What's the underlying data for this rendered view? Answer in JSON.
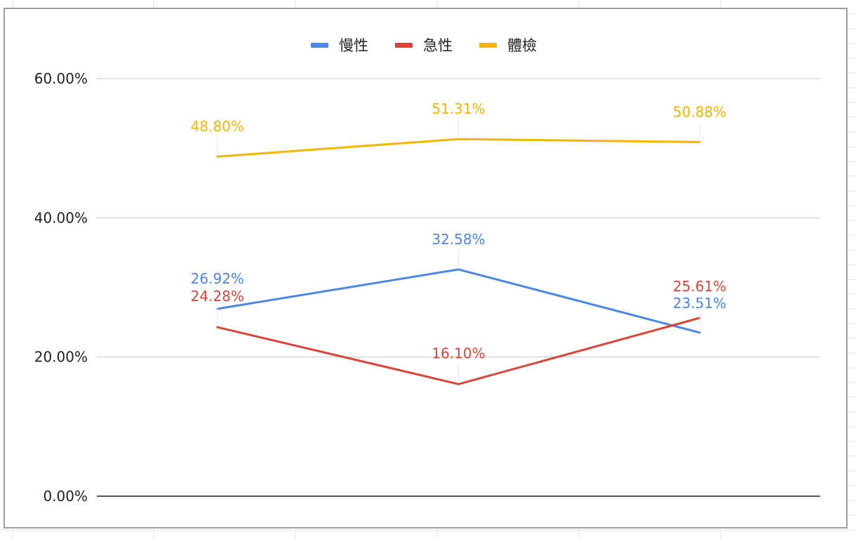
{
  "chart_data": {
    "type": "line",
    "categories": [
      "",
      "",
      ""
    ],
    "series": [
      {
        "name": "慢性",
        "color": "#4a86e8",
        "values": [
          26.92,
          32.58,
          23.51
        ],
        "labels": [
          "26.92%",
          "32.58%",
          "23.51%"
        ]
      },
      {
        "name": "急性",
        "color": "#db4437",
        "values": [
          24.28,
          16.1,
          25.61
        ],
        "labels": [
          "24.28%",
          "16.10%",
          "25.61%"
        ]
      },
      {
        "name": "體檢",
        "color": "#f4b400",
        "values": [
          48.8,
          51.31,
          50.88
        ],
        "labels": [
          "48.80%",
          "51.31%",
          "50.88%"
        ]
      }
    ],
    "ylim": [
      0,
      60
    ],
    "yticks": [
      {
        "value": 0,
        "label": "0.00%"
      },
      {
        "value": 20,
        "label": "20.00%"
      },
      {
        "value": 40,
        "label": "40.00%"
      },
      {
        "value": 60,
        "label": "60.00%"
      }
    ],
    "grid": true,
    "legend_position": "top-center",
    "title": "",
    "xlabel": "",
    "ylabel": ""
  }
}
